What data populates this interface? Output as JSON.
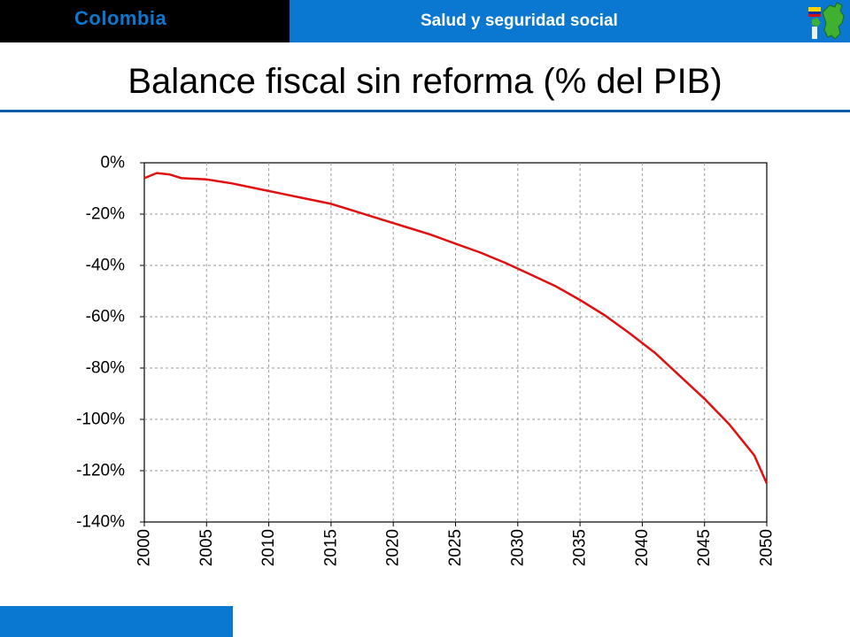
{
  "header": {
    "country_label": "Colombia",
    "section_label": "Salud y seguridad social",
    "colors": {
      "black_bar": "#000000",
      "blue_bar": "#0a78d0",
      "country_text": "#0a78d0"
    },
    "logo_icon": "colombia-map-logo-icon"
  },
  "slide": {
    "title": "Balance fiscal sin reforma (% del PIB)"
  },
  "chart_data": {
    "type": "line",
    "title": "",
    "xlabel": "",
    "ylabel": "",
    "xlim": [
      2000,
      2050
    ],
    "ylim": [
      -140,
      0
    ],
    "x_ticks": [
      2000,
      2005,
      2010,
      2015,
      2020,
      2025,
      2030,
      2035,
      2040,
      2045,
      2050
    ],
    "x_tick_labels": [
      "2000",
      "2005",
      "2010",
      "2015",
      "2020",
      "2025",
      "2030",
      "2035",
      "2040",
      "2045",
      "2050"
    ],
    "y_ticks": [
      0,
      -20,
      -40,
      -60,
      -80,
      -100,
      -120,
      -140
    ],
    "y_tick_labels": [
      "0%",
      "-20%",
      "-40%",
      "-60%",
      "-80%",
      "-100%",
      "-120%",
      "-140%"
    ],
    "grid": true,
    "legend": "none",
    "series": [
      {
        "color": "#e01010",
        "x": [
          2000,
          2001,
          2002,
          2003,
          2005,
          2007,
          2009,
          2011,
          2013,
          2015,
          2017,
          2019,
          2021,
          2023,
          2025,
          2027,
          2029,
          2031,
          2033,
          2035,
          2037,
          2039,
          2041,
          2043,
          2045,
          2047,
          2049,
          2050
        ],
        "values": [
          -6,
          -4,
          -4.5,
          -6,
          -6.5,
          -8,
          -10,
          -12,
          -14,
          -16,
          -19,
          -22,
          -25,
          -28,
          -31.5,
          -35,
          -39,
          -43.5,
          -48,
          -53.5,
          -59.5,
          -66.5,
          -74,
          -83,
          -92,
          -102,
          -114,
          -125
        ]
      }
    ]
  }
}
